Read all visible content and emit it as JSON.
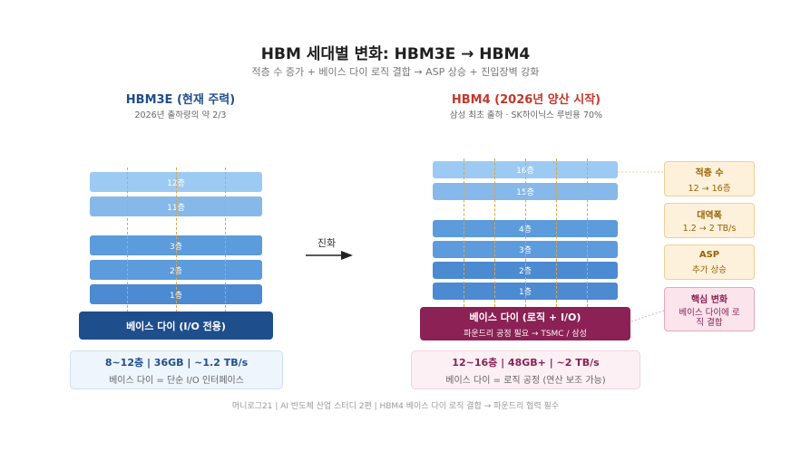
{
  "title": "HBM 세대별 변화: HBM3E → HBM4",
  "subtitle": "적층 수 증가 + 베이스 다이 로직 결합 → ASP 상승 + 진입장벽 강화",
  "left": {
    "heading": "HBM3E (현재 주력)",
    "subheading": "2026년 출하량의 약 2/3",
    "layers": [
      "12층",
      "11층",
      "3층",
      "2층",
      "1층"
    ],
    "base": "베이스 다이 (I/O 전용)",
    "spec_main": "8~12층 | 36GB | ~1.2 TB/s",
    "spec_sub": "베이스 다이 = 단순 I/O 인터페이스"
  },
  "arrow_label": "진화",
  "right": {
    "heading": "HBM4 (2026년 양산 시작)",
    "subheading": "삼성 최초 출하 · SK하이닉스 루빈용 70%",
    "layers": [
      "16층",
      "15층",
      "4층",
      "3층",
      "2층",
      "1층"
    ],
    "base_main": "베이스 다이 (로직 + I/O)",
    "base_sub": "파운드리 공정 필요 → TSMC / 삼성",
    "spec_main": "12~16층 | 48GB+ | ~2 TB/s",
    "spec_sub": "베이스 다이 = 로직 공정 (연산 보조 가능)"
  },
  "callouts": [
    {
      "title": "적층 수",
      "detail": "12 → 16층"
    },
    {
      "title": "대역폭",
      "detail": "1.2 → 2 TB/s"
    },
    {
      "title": "ASP",
      "detail": "추가 상승"
    },
    {
      "title": "핵심 변화",
      "detail": "베이스 다이에 로직 결합"
    }
  ],
  "footer": "머니로그21 | AI 반도체 산업 스터디 2편 | HBM4 베이스 다이 로직 결합 → 파운드리 협력 필수",
  "colors": {
    "left_accent": "#1f4e8c",
    "right_accent": "#c0392b",
    "base_right": "#8b2154",
    "tsv": "#e5a23c"
  }
}
